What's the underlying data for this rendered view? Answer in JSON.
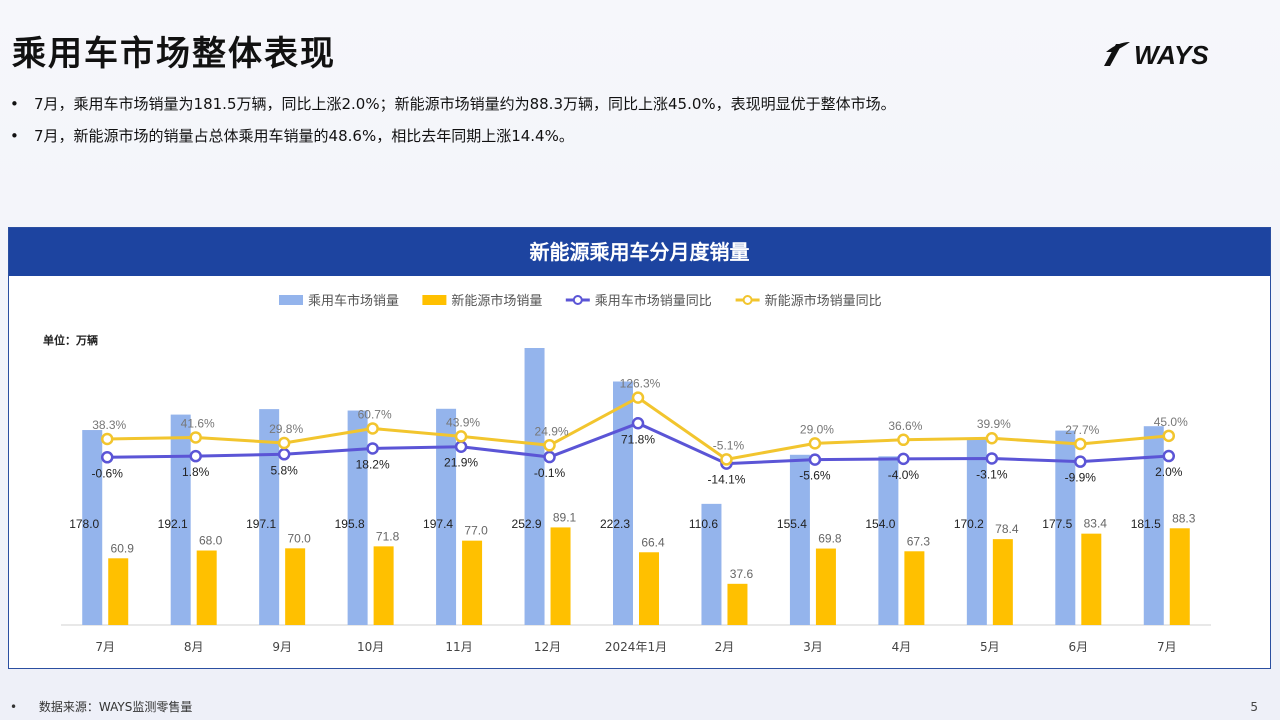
{
  "page": {
    "title": "乘用车市场整体表现",
    "logo_text": "WAYS",
    "bullets": [
      "7月，乘用车市场销量为181.5万辆，同比上涨2.0%；新能源市场销量约为88.3万辆，同比上涨45.0%，表现明显优于整体市场。",
      "7月，新能源市场的销量占总体乘用车销量的48.6%，相比去年同期上涨14.4%。"
    ],
    "bullet_symbol": "•",
    "footer_source": "数据来源：WAYS监测零售量",
    "page_number": "5"
  },
  "chart_data": {
    "type": "bar",
    "title": "新能源乘用车分月度销量",
    "unit_label": "单位：万辆",
    "legend_position": "top",
    "categories": [
      "7月",
      "8月",
      "9月",
      "10月",
      "11月",
      "12月",
      "2024年1月",
      "2月",
      "3月",
      "4月",
      "5月",
      "6月",
      "7月"
    ],
    "series": [
      {
        "name": "乘用车市场销量",
        "kind": "bar",
        "color": "#94b4ec",
        "values": [
          178.0,
          192.1,
          197.1,
          195.8,
          197.4,
          252.9,
          222.3,
          110.6,
          155.4,
          154.0,
          170.2,
          177.5,
          181.5
        ]
      },
      {
        "name": "新能源市场销量",
        "kind": "bar",
        "color": "#ffc000",
        "values": [
          60.9,
          68.0,
          70.0,
          71.8,
          77.0,
          89.1,
          66.4,
          37.6,
          69.8,
          67.3,
          78.4,
          83.4,
          88.3
        ]
      },
      {
        "name": "乘用车市场销量同比",
        "kind": "line",
        "color": "#5b55d6",
        "unit": "%",
        "values": [
          -0.6,
          1.8,
          5.8,
          18.2,
          21.9,
          -0.1,
          71.8,
          -14.1,
          -5.6,
          -4.0,
          -3.1,
          -9.9,
          2.0
        ]
      },
      {
        "name": "新能源市场销量同比",
        "kind": "line",
        "color": "#f2c52e",
        "unit": "%",
        "values": [
          38.3,
          41.6,
          29.8,
          60.7,
          43.9,
          24.9,
          126.3,
          -5.1,
          29.0,
          36.6,
          39.9,
          27.7,
          45.0
        ]
      }
    ]
  },
  "colors": {
    "accent": "#1d44a0",
    "background": "#eef0f8"
  }
}
